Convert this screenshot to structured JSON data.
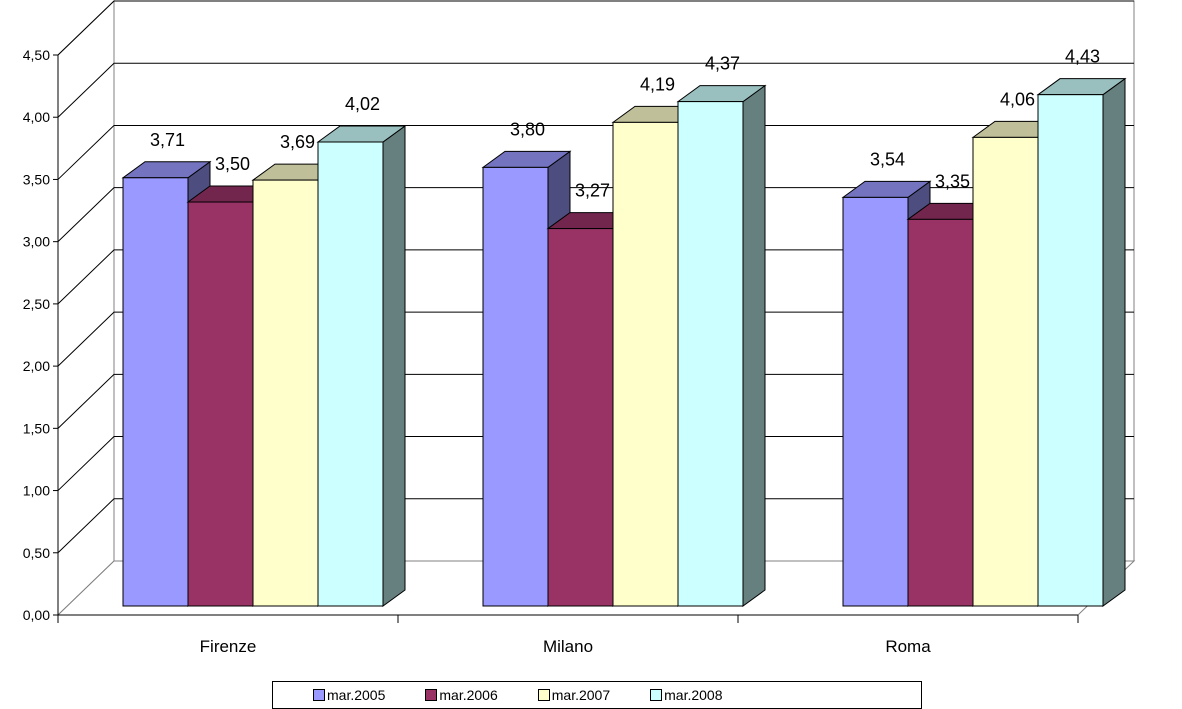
{
  "chart_data": {
    "type": "bar",
    "categories": [
      "Firenze",
      "Milano",
      "Roma"
    ],
    "series": [
      {
        "name": "mar.2005",
        "values": [
          3.71,
          3.8,
          3.54
        ],
        "labels": [
          "3,71",
          "3,80",
          "3,54"
        ],
        "color": "#9999ff"
      },
      {
        "name": "mar.2006",
        "values": [
          3.5,
          3.27,
          3.35
        ],
        "labels": [
          "3,50",
          "3,27",
          "3,35"
        ],
        "color": "#993366"
      },
      {
        "name": "mar.2007",
        "values": [
          3.69,
          4.19,
          4.06
        ],
        "labels": [
          "3,69",
          "4,19",
          "4,06"
        ],
        "color": "#ffffcc"
      },
      {
        "name": "mar.2008",
        "values": [
          4.02,
          4.37,
          4.43
        ],
        "labels": [
          "4,02",
          "4,37",
          "4,43"
        ],
        "color": "#ccffff"
      }
    ],
    "ylim": [
      0,
      4.5
    ],
    "yticks": [
      "0,00",
      "0,50",
      "1,00",
      "1,50",
      "2,00",
      "2,50",
      "3,00",
      "3,50",
      "4,00",
      "4,50"
    ],
    "grid": true,
    "legend_position": "bottom"
  }
}
